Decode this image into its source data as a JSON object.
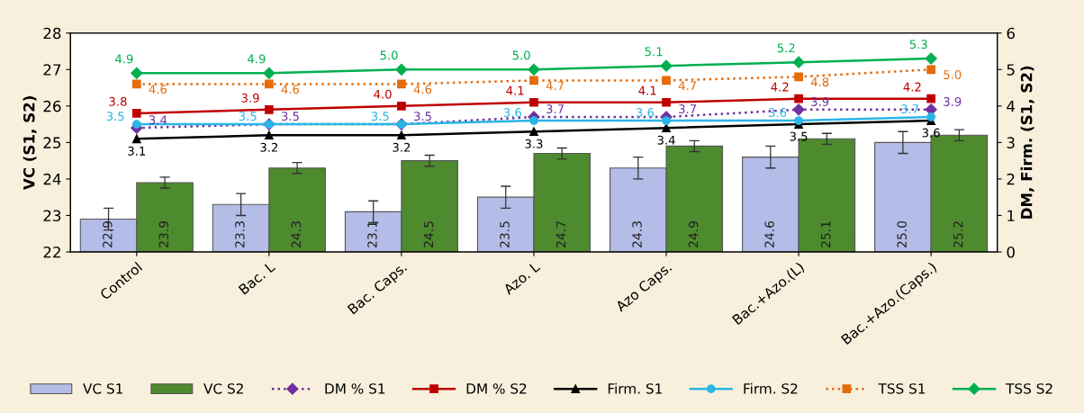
{
  "chart_data": {
    "type": "bar",
    "categories": [
      "Control",
      "Bac. L",
      "Bac. Caps.",
      "Azo. L",
      "Azo Caps.",
      "Bac.+Azo.(L)",
      "Bac.+Azo.(Caps.)"
    ],
    "ylabel": "VC (S1, S2)",
    "y2label": "DM, Firm. (S1, S2)",
    "ylim": [
      22,
      28
    ],
    "yticks": [
      22,
      23,
      24,
      25,
      26,
      27,
      28
    ],
    "y2lim": [
      0,
      6
    ],
    "y2ticks": [
      0,
      1,
      2,
      3,
      4,
      5,
      6
    ],
    "grid": false,
    "legend": "bottom",
    "series": [
      {
        "name": "VC S1",
        "color": "#b4bce8",
        "values": [
          22.9,
          23.3,
          23.1,
          23.5,
          24.3,
          24.6,
          25.0
        ],
        "value_labels": [
          "22.9",
          "23.3",
          "23.1",
          "23.5",
          "24.3",
          "24.6",
          "25.0"
        ],
        "errors": [
          0.3,
          0.3,
          0.3,
          0.3,
          0.3,
          0.3,
          0.3
        ]
      },
      {
        "name": "VC S2",
        "color": "#4e8a2e",
        "values": [
          23.9,
          24.3,
          24.5,
          24.7,
          24.9,
          25.1,
          25.2
        ],
        "value_labels": [
          "23.9",
          "24.3",
          "24.5",
          "24.7",
          "24.9",
          "25.1",
          "25.2"
        ],
        "errors": [
          0.15,
          0.15,
          0.15,
          0.15,
          0.15,
          0.15,
          0.15
        ]
      },
      {
        "name": "DM % S1",
        "type": "line",
        "axis": "y2",
        "color": "#7030a0",
        "marker": "diamond",
        "line_style": "dotted",
        "values": [
          3.4,
          3.5,
          3.5,
          3.7,
          3.7,
          3.9,
          3.9
        ],
        "value_labels": [
          "3.4",
          "3.5",
          "3.5",
          "3.7",
          "3.7",
          "3.9",
          "3.9"
        ]
      },
      {
        "name": "DM % S2",
        "type": "line",
        "axis": "y2",
        "color": "#c00000",
        "marker": "square",
        "line_style": "solid",
        "values": [
          3.8,
          3.9,
          4.0,
          4.1,
          4.1,
          4.2,
          4.2
        ],
        "value_labels": [
          "3.8",
          "3.9",
          "4.0",
          "4.1",
          "4.1",
          "4.2",
          "4.2"
        ]
      },
      {
        "name": "Firm. S1",
        "type": "line",
        "axis": "y2",
        "color": "#000000",
        "marker": "triangle",
        "line_style": "solid",
        "values": [
          3.1,
          3.2,
          3.2,
          3.3,
          3.4,
          3.5,
          3.6
        ],
        "value_labels": [
          "3.1",
          "3.2",
          "3.2",
          "3.3",
          "3.4",
          "3.5",
          "3.6"
        ]
      },
      {
        "name": "Firm. S2",
        "type": "line",
        "axis": "y2",
        "color": "#29b6e6",
        "marker": "circle",
        "line_style": "solid",
        "values": [
          3.5,
          3.5,
          3.5,
          3.6,
          3.6,
          3.6,
          3.7
        ],
        "value_labels": [
          "3.5",
          "3.5",
          "3.5",
          "3.6",
          "3.6",
          "3.6",
          "3.7"
        ]
      },
      {
        "name": "TSS S1",
        "type": "line",
        "axis": "y2",
        "color": "#e46c0a",
        "marker": "square",
        "line_style": "dotted",
        "values": [
          4.6,
          4.6,
          4.6,
          4.7,
          4.7,
          4.8,
          5.0
        ],
        "value_labels": [
          "4.6",
          "4.6",
          "4.6",
          "4.7",
          "4.7",
          "4.8",
          "5.0"
        ]
      },
      {
        "name": "TSS S2",
        "type": "line",
        "axis": "y2",
        "color": "#00b050",
        "marker": "diamond",
        "line_style": "solid",
        "values": [
          4.9,
          4.9,
          5.0,
          5.0,
          5.1,
          5.2,
          5.3
        ],
        "value_labels": [
          "4.9",
          "4.9",
          "5.0",
          "5.0",
          "5.1",
          "5.2",
          "5.3"
        ]
      }
    ]
  }
}
